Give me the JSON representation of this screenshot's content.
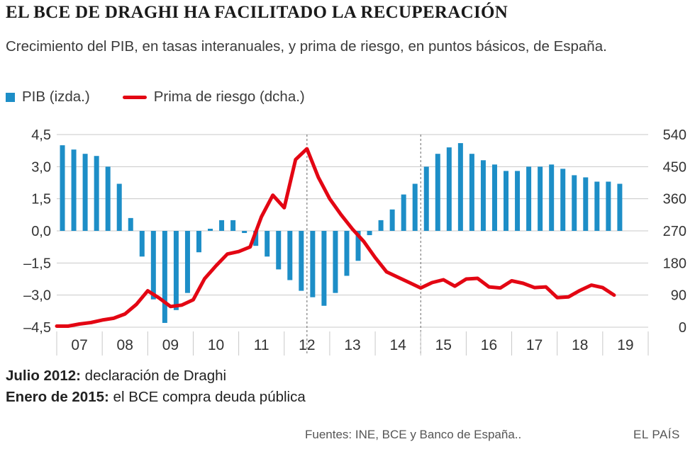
{
  "header": {
    "title": "EL BCE DE DRAGHI HA FACILITADO LA RECUPERACIÓN",
    "subtitle": "Crecimiento del PIB, en tasas interanuales, y prima de riesgo, en puntos básicos, de España."
  },
  "legend": {
    "bar_label": "PIB (izda.)",
    "line_label": "Prima de riesgo (dcha.)"
  },
  "colors": {
    "bar": "#1d8ec7",
    "line": "#e30613",
    "grid": "#c8c8c8",
    "axis_text": "#333333"
  },
  "chart_data": {
    "type": "bar+line",
    "x_categories": [
      "07",
      "08",
      "09",
      "10",
      "11",
      "12",
      "13",
      "14",
      "15",
      "16",
      "17",
      "18",
      "19"
    ],
    "left_axis": {
      "label": "PIB (izda.)",
      "ticks": [
        "4,5",
        "3,0",
        "1,5",
        "0,0",
        "–1,5",
        "–3,0",
        "–4,5"
      ],
      "range": [
        -4.5,
        4.5
      ]
    },
    "right_axis": {
      "label": "Prima de riesgo (dcha.)",
      "ticks": [
        "540",
        "450",
        "360",
        "270",
        "180",
        "90",
        "0"
      ],
      "range": [
        0,
        540
      ]
    },
    "series": [
      {
        "name": "PIB (izda.)",
        "kind": "bar",
        "x": [
          2007.125,
          2007.375,
          2007.625,
          2007.875,
          2008.125,
          2008.375,
          2008.625,
          2008.875,
          2009.125,
          2009.375,
          2009.625,
          2009.875,
          2010.125,
          2010.375,
          2010.625,
          2010.875,
          2011.125,
          2011.375,
          2011.625,
          2011.875,
          2012.125,
          2012.375,
          2012.625,
          2012.875,
          2013.125,
          2013.375,
          2013.625,
          2013.875,
          2014.125,
          2014.375,
          2014.625,
          2014.875,
          2015.125,
          2015.375,
          2015.625,
          2015.875,
          2016.125,
          2016.375,
          2016.625,
          2016.875,
          2017.125,
          2017.375,
          2017.625,
          2017.875,
          2018.125,
          2018.375,
          2018.625,
          2018.875,
          2019.125,
          2019.375
        ],
        "values": [
          4.0,
          3.8,
          3.6,
          3.5,
          3.0,
          2.2,
          0.6,
          -1.2,
          -3.2,
          -4.3,
          -3.7,
          -2.9,
          -1.0,
          0.1,
          0.5,
          0.5,
          -0.1,
          -0.7,
          -1.2,
          -1.8,
          -2.3,
          -2.8,
          -3.1,
          -3.5,
          -2.9,
          -2.1,
          -1.4,
          -0.2,
          0.5,
          1.0,
          1.7,
          2.2,
          3.0,
          3.6,
          3.9,
          4.1,
          3.6,
          3.3,
          3.1,
          2.8,
          2.8,
          3.0,
          3.0,
          3.1,
          2.9,
          2.6,
          2.5,
          2.3,
          2.3,
          2.2
        ]
      },
      {
        "name": "Prima de riesgo (dcha.)",
        "kind": "line",
        "x": [
          2007.0,
          2007.25,
          2007.5,
          2007.75,
          2008.0,
          2008.25,
          2008.5,
          2008.75,
          2009.0,
          2009.25,
          2009.5,
          2009.75,
          2010.0,
          2010.25,
          2010.5,
          2010.75,
          2011.0,
          2011.25,
          2011.5,
          2011.75,
          2012.0,
          2012.25,
          2012.5,
          2012.75,
          2013.0,
          2013.25,
          2013.5,
          2013.75,
          2014.0,
          2014.25,
          2014.5,
          2014.75,
          2015.0,
          2015.25,
          2015.5,
          2015.75,
          2016.0,
          2016.25,
          2016.5,
          2016.75,
          2017.0,
          2017.25,
          2017.5,
          2017.75,
          2018.0,
          2018.25,
          2018.5,
          2018.75,
          2019.0,
          2019.25
        ],
        "values": [
          3,
          3,
          9,
          13,
          20,
          25,
          37,
          64,
          102,
          82,
          58,
          62,
          77,
          136,
          172,
          205,
          212,
          225,
          310,
          370,
          335,
          470,
          500,
          420,
          360,
          315,
          275,
          240,
          195,
          155,
          140,
          125,
          110,
          125,
          133,
          115,
          135,
          137,
          113,
          110,
          130,
          123,
          111,
          113,
          83,
          85,
          103,
          118,
          111,
          90
        ]
      }
    ],
    "reference_lines": [
      {
        "x": 2012.5,
        "label": "Julio 2012"
      },
      {
        "x": 2015.0,
        "label": "Enero de 2015"
      }
    ]
  },
  "notes": [
    {
      "key": "Julio 2012:",
      "text": " declaración de Draghi"
    },
    {
      "key": "Enero de 2015:",
      "text": " el BCE compra deuda pública"
    }
  ],
  "footer": {
    "sources": "Fuentes: INE, BCE y Banco de España..",
    "brand": "EL PAÍS"
  }
}
